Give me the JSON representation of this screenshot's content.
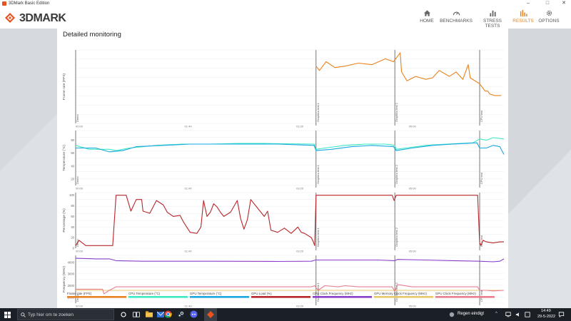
{
  "window": {
    "title": "3DMark Basic Edition",
    "minimize": "–",
    "maximize": "□",
    "close": "✕"
  },
  "header": {
    "logo_text": "3DMARK",
    "nav": [
      {
        "label": "HOME",
        "icon": "home-icon",
        "active": false
      },
      {
        "label": "BENCHMARKS",
        "icon": "gauge-icon",
        "active": false
      },
      {
        "label": "STRESS TESTS",
        "icon": "bar-chart-icon",
        "active": false
      },
      {
        "label": "RESULTS",
        "icon": "results-bars-icon",
        "active": true
      },
      {
        "label": "OPTIONS",
        "icon": "gear-icon",
        "active": false
      }
    ],
    "accent_color": "#e8821e"
  },
  "panel": {
    "title": "Detailed monitoring"
  },
  "chart_data": [
    {
      "type": "line",
      "ylabel": "Frame rate (FPS)",
      "yticks": [],
      "phase_labels": [
        "Demo",
        "Graphics test 1",
        "Graphics test 2",
        "CPU test"
      ],
      "x_ticks": [
        "00:00",
        "01:40",
        "03:20",
        "05:00"
      ],
      "series": [
        {
          "color": "#e8821e",
          "points": [
            [
              3.57,
              78
            ],
            [
              3.62,
              72
            ],
            [
              3.72,
              84
            ],
            [
              3.85,
              76
            ],
            [
              4.0,
              78
            ],
            [
              4.2,
              82
            ],
            [
              4.4,
              80
            ],
            [
              4.6,
              88
            ],
            [
              4.72,
              84
            ],
            [
              4.82,
              96
            ],
            [
              4.84,
              70
            ],
            [
              4.92,
              58
            ],
            [
              5.05,
              64
            ],
            [
              5.2,
              60
            ],
            [
              5.3,
              62
            ],
            [
              5.4,
              72
            ],
            [
              5.55,
              64
            ],
            [
              5.65,
              70
            ],
            [
              5.75,
              60
            ],
            [
              5.83,
              80
            ],
            [
              5.86,
              62
            ],
            [
              6.0,
              54
            ],
            [
              6.08,
              44
            ],
            [
              6.12,
              44
            ],
            [
              6.15,
              40
            ],
            [
              6.22,
              38
            ],
            [
              6.32,
              38
            ]
          ]
        }
      ]
    },
    {
      "type": "line",
      "ylabel": "Temperature (°C)",
      "yticks": [
        "80",
        "60",
        "40",
        "20"
      ],
      "phase_labels": [
        "Demo",
        "Graphics test 1",
        "Graphics test 2",
        "CPU test"
      ],
      "x_ticks": [
        "00:00",
        "01:40",
        "03:20",
        "05:00"
      ],
      "series": [
        {
          "name": "CPU Temperature (°C)",
          "color": "#3ee8c4",
          "points": [
            [
              0,
              72
            ],
            [
              0.2,
              66
            ],
            [
              0.5,
              66
            ],
            [
              0.6,
              64
            ],
            [
              0.8,
              68
            ],
            [
              1.2,
              72
            ],
            [
              1.6,
              74
            ],
            [
              2.0,
              74
            ],
            [
              2.4,
              75
            ],
            [
              2.8,
              75
            ],
            [
              3.54,
              74
            ],
            [
              3.57,
              66
            ],
            [
              3.7,
              68
            ],
            [
              4.0,
              72
            ],
            [
              4.3,
              74
            ],
            [
              4.6,
              74
            ],
            [
              4.74,
              72
            ],
            [
              4.76,
              66
            ],
            [
              4.9,
              68
            ],
            [
              5.2,
              72
            ],
            [
              5.5,
              74
            ],
            [
              5.9,
              76
            ],
            [
              6.0,
              82
            ],
            [
              6.1,
              80
            ],
            [
              6.2,
              84
            ],
            [
              6.36,
              82
            ]
          ]
        },
        {
          "name": "GPU Temperature (°C)",
          "color": "#1aa8e0",
          "points": [
            [
              0,
              68
            ],
            [
              0.3,
              68
            ],
            [
              0.5,
              62
            ],
            [
              0.7,
              64
            ],
            [
              0.9,
              70
            ],
            [
              1.3,
              72
            ],
            [
              1.7,
              74
            ],
            [
              2.2,
              74
            ],
            [
              2.6,
              74
            ],
            [
              3.0,
              74
            ],
            [
              3.54,
              72
            ],
            [
              3.57,
              64
            ],
            [
              3.8,
              66
            ],
            [
              4.1,
              70
            ],
            [
              4.4,
              72
            ],
            [
              4.72,
              70
            ],
            [
              4.76,
              64
            ],
            [
              5.0,
              68
            ],
            [
              5.3,
              72
            ],
            [
              5.6,
              74
            ],
            [
              5.96,
              76
            ],
            [
              6.0,
              68
            ],
            [
              6.1,
              68
            ],
            [
              6.2,
              72
            ],
            [
              6.3,
              70
            ],
            [
              6.36,
              58
            ]
          ]
        }
      ]
    },
    {
      "type": "line",
      "ylabel": "Percentage (%)",
      "yticks": [
        "100",
        "80",
        "60",
        "40",
        "20",
        "0"
      ],
      "phase_labels": [
        "Demo",
        "Graphics test 1",
        "Graphics test 2",
        "CPU test"
      ],
      "x_ticks": [
        "00:00",
        "01:40",
        "03:20",
        "05:00"
      ],
      "series": [
        {
          "name": "GPU Load (%)",
          "color": "#b8262a",
          "points": [
            [
              0,
              5
            ],
            [
              0.05,
              15
            ],
            [
              0.1,
              10
            ],
            [
              0.15,
              5
            ],
            [
              0.4,
              5
            ],
            [
              0.5,
              5
            ],
            [
              0.55,
              5
            ],
            [
              0.6,
              100
            ],
            [
              0.75,
              100
            ],
            [
              0.82,
              70
            ],
            [
              0.9,
              92
            ],
            [
              0.98,
              92
            ],
            [
              1.0,
              70
            ],
            [
              1.1,
              66
            ],
            [
              1.2,
              90
            ],
            [
              1.3,
              82
            ],
            [
              1.36,
              68
            ],
            [
              1.45,
              60
            ],
            [
              1.55,
              62
            ],
            [
              1.6,
              50
            ],
            [
              1.7,
              30
            ],
            [
              1.8,
              28
            ],
            [
              1.86,
              40
            ],
            [
              1.9,
              90
            ],
            [
              1.95,
              60
            ],
            [
              2.0,
              68
            ],
            [
              2.05,
              84
            ],
            [
              2.1,
              78
            ],
            [
              2.15,
              68
            ],
            [
              2.2,
              60
            ],
            [
              2.3,
              68
            ],
            [
              2.4,
              90
            ],
            [
              2.45,
              56
            ],
            [
              2.5,
              36
            ],
            [
              2.55,
              54
            ],
            [
              2.6,
              92
            ],
            [
              2.7,
              76
            ],
            [
              2.8,
              60
            ],
            [
              2.85,
              70
            ],
            [
              2.9,
              34
            ],
            [
              3.0,
              30
            ],
            [
              3.1,
              38
            ],
            [
              3.2,
              28
            ],
            [
              3.3,
              40
            ],
            [
              3.35,
              30
            ],
            [
              3.4,
              28
            ],
            [
              3.5,
              20
            ],
            [
              3.53,
              12
            ],
            [
              3.55,
              5
            ],
            [
              3.57,
              100
            ],
            [
              3.7,
              100
            ],
            [
              4.0,
              100
            ],
            [
              4.4,
              100
            ],
            [
              4.7,
              100
            ],
            [
              4.73,
              90
            ],
            [
              4.76,
              100
            ],
            [
              5.0,
              100
            ],
            [
              5.5,
              100
            ],
            [
              5.97,
              100
            ],
            [
              6.0,
              10
            ],
            [
              6.02,
              5
            ],
            [
              6.05,
              15
            ],
            [
              6.1,
              12
            ],
            [
              6.2,
              10
            ],
            [
              6.3,
              12
            ],
            [
              6.36,
              12
            ]
          ]
        }
      ]
    },
    {
      "type": "line",
      "ylabel": "Frequency (MHz)",
      "yticks": [
        "4000",
        "3000",
        "2000",
        "1000"
      ],
      "phase_labels": [
        "Demo",
        "Graphics test 1",
        "Graphics test 2",
        "CPU test"
      ],
      "x_ticks": [
        "00:00",
        "01:40",
        "03:20",
        "05:00"
      ],
      "series": [
        {
          "name": "CPU Clock Frequency (MHz)",
          "color": "#8a3fcc",
          "points": [
            [
              0,
              4350
            ],
            [
              0.3,
              4300
            ],
            [
              0.5,
              4300
            ],
            [
              0.6,
              4150
            ],
            [
              1.0,
              4100
            ],
            [
              2.0,
              4100
            ],
            [
              3.0,
              4080
            ],
            [
              3.5,
              4100
            ],
            [
              3.56,
              4200
            ],
            [
              4.0,
              4200
            ],
            [
              4.5,
              4200
            ],
            [
              4.74,
              4150
            ],
            [
              4.78,
              4250
            ],
            [
              5.2,
              4200
            ],
            [
              5.6,
              4150
            ],
            [
              6.0,
              4100
            ],
            [
              6.2,
              4050
            ],
            [
              6.3,
              4100
            ],
            [
              6.36,
              4300
            ]
          ]
        },
        {
          "name": "GPU Memory Clock Frequency (MHz)",
          "color": "#e8c96a",
          "points": [
            [
              0,
              1600
            ],
            [
              6.36,
              1600
            ]
          ]
        },
        {
          "name": "GPU Clock Frequency (MHz)",
          "color": "#e87f8f",
          "points": [
            [
              0,
              1700
            ],
            [
              0.4,
              1700
            ],
            [
              0.42,
              1300
            ],
            [
              0.5,
              1600
            ],
            [
              0.6,
              1900
            ],
            [
              1.0,
              1900
            ],
            [
              1.5,
              1900
            ],
            [
              2.0,
              1900
            ],
            [
              2.5,
              1900
            ],
            [
              3.0,
              1900
            ],
            [
              3.5,
              1900
            ],
            [
              3.55,
              2000
            ],
            [
              3.6,
              1600
            ],
            [
              3.7,
              2000
            ],
            [
              3.9,
              1900
            ],
            [
              4.0,
              2000
            ],
            [
              4.2,
              1900
            ],
            [
              4.5,
              1900
            ],
            [
              4.7,
              1900
            ],
            [
              4.74,
              1500
            ],
            [
              4.78,
              2100
            ],
            [
              5.0,
              1900
            ],
            [
              5.5,
              1900
            ],
            [
              5.97,
              1900
            ],
            [
              6.0,
              1600
            ],
            [
              6.1,
              1600
            ],
            [
              6.2,
              1550
            ],
            [
              6.36,
              1600
            ]
          ]
        }
      ]
    }
  ],
  "legend": [
    {
      "label": "Frame rate (FPS)",
      "color": "#e8821e"
    },
    {
      "label": "CPU Temperature (°C)",
      "color": "#3ee8c4"
    },
    {
      "label": "GPU Temperature (°C)",
      "color": "#1aa8e0"
    },
    {
      "label": "GPU Load (%)",
      "color": "#b8262a"
    },
    {
      "label": "CPU Clock Frequency (MHz)",
      "color": "#8a3fcc"
    },
    {
      "label": "GPU Memory Clock Frequency (MHz)",
      "color": "#e8c96a"
    },
    {
      "label": "GPU Clock Frequency (MHz)",
      "color": "#e87f8f"
    }
  ],
  "taskbar": {
    "search_placeholder": "Typ hier om te zoeken",
    "weather": "Regen eindigt",
    "time": "14:49",
    "date": "29-5-2022"
  }
}
